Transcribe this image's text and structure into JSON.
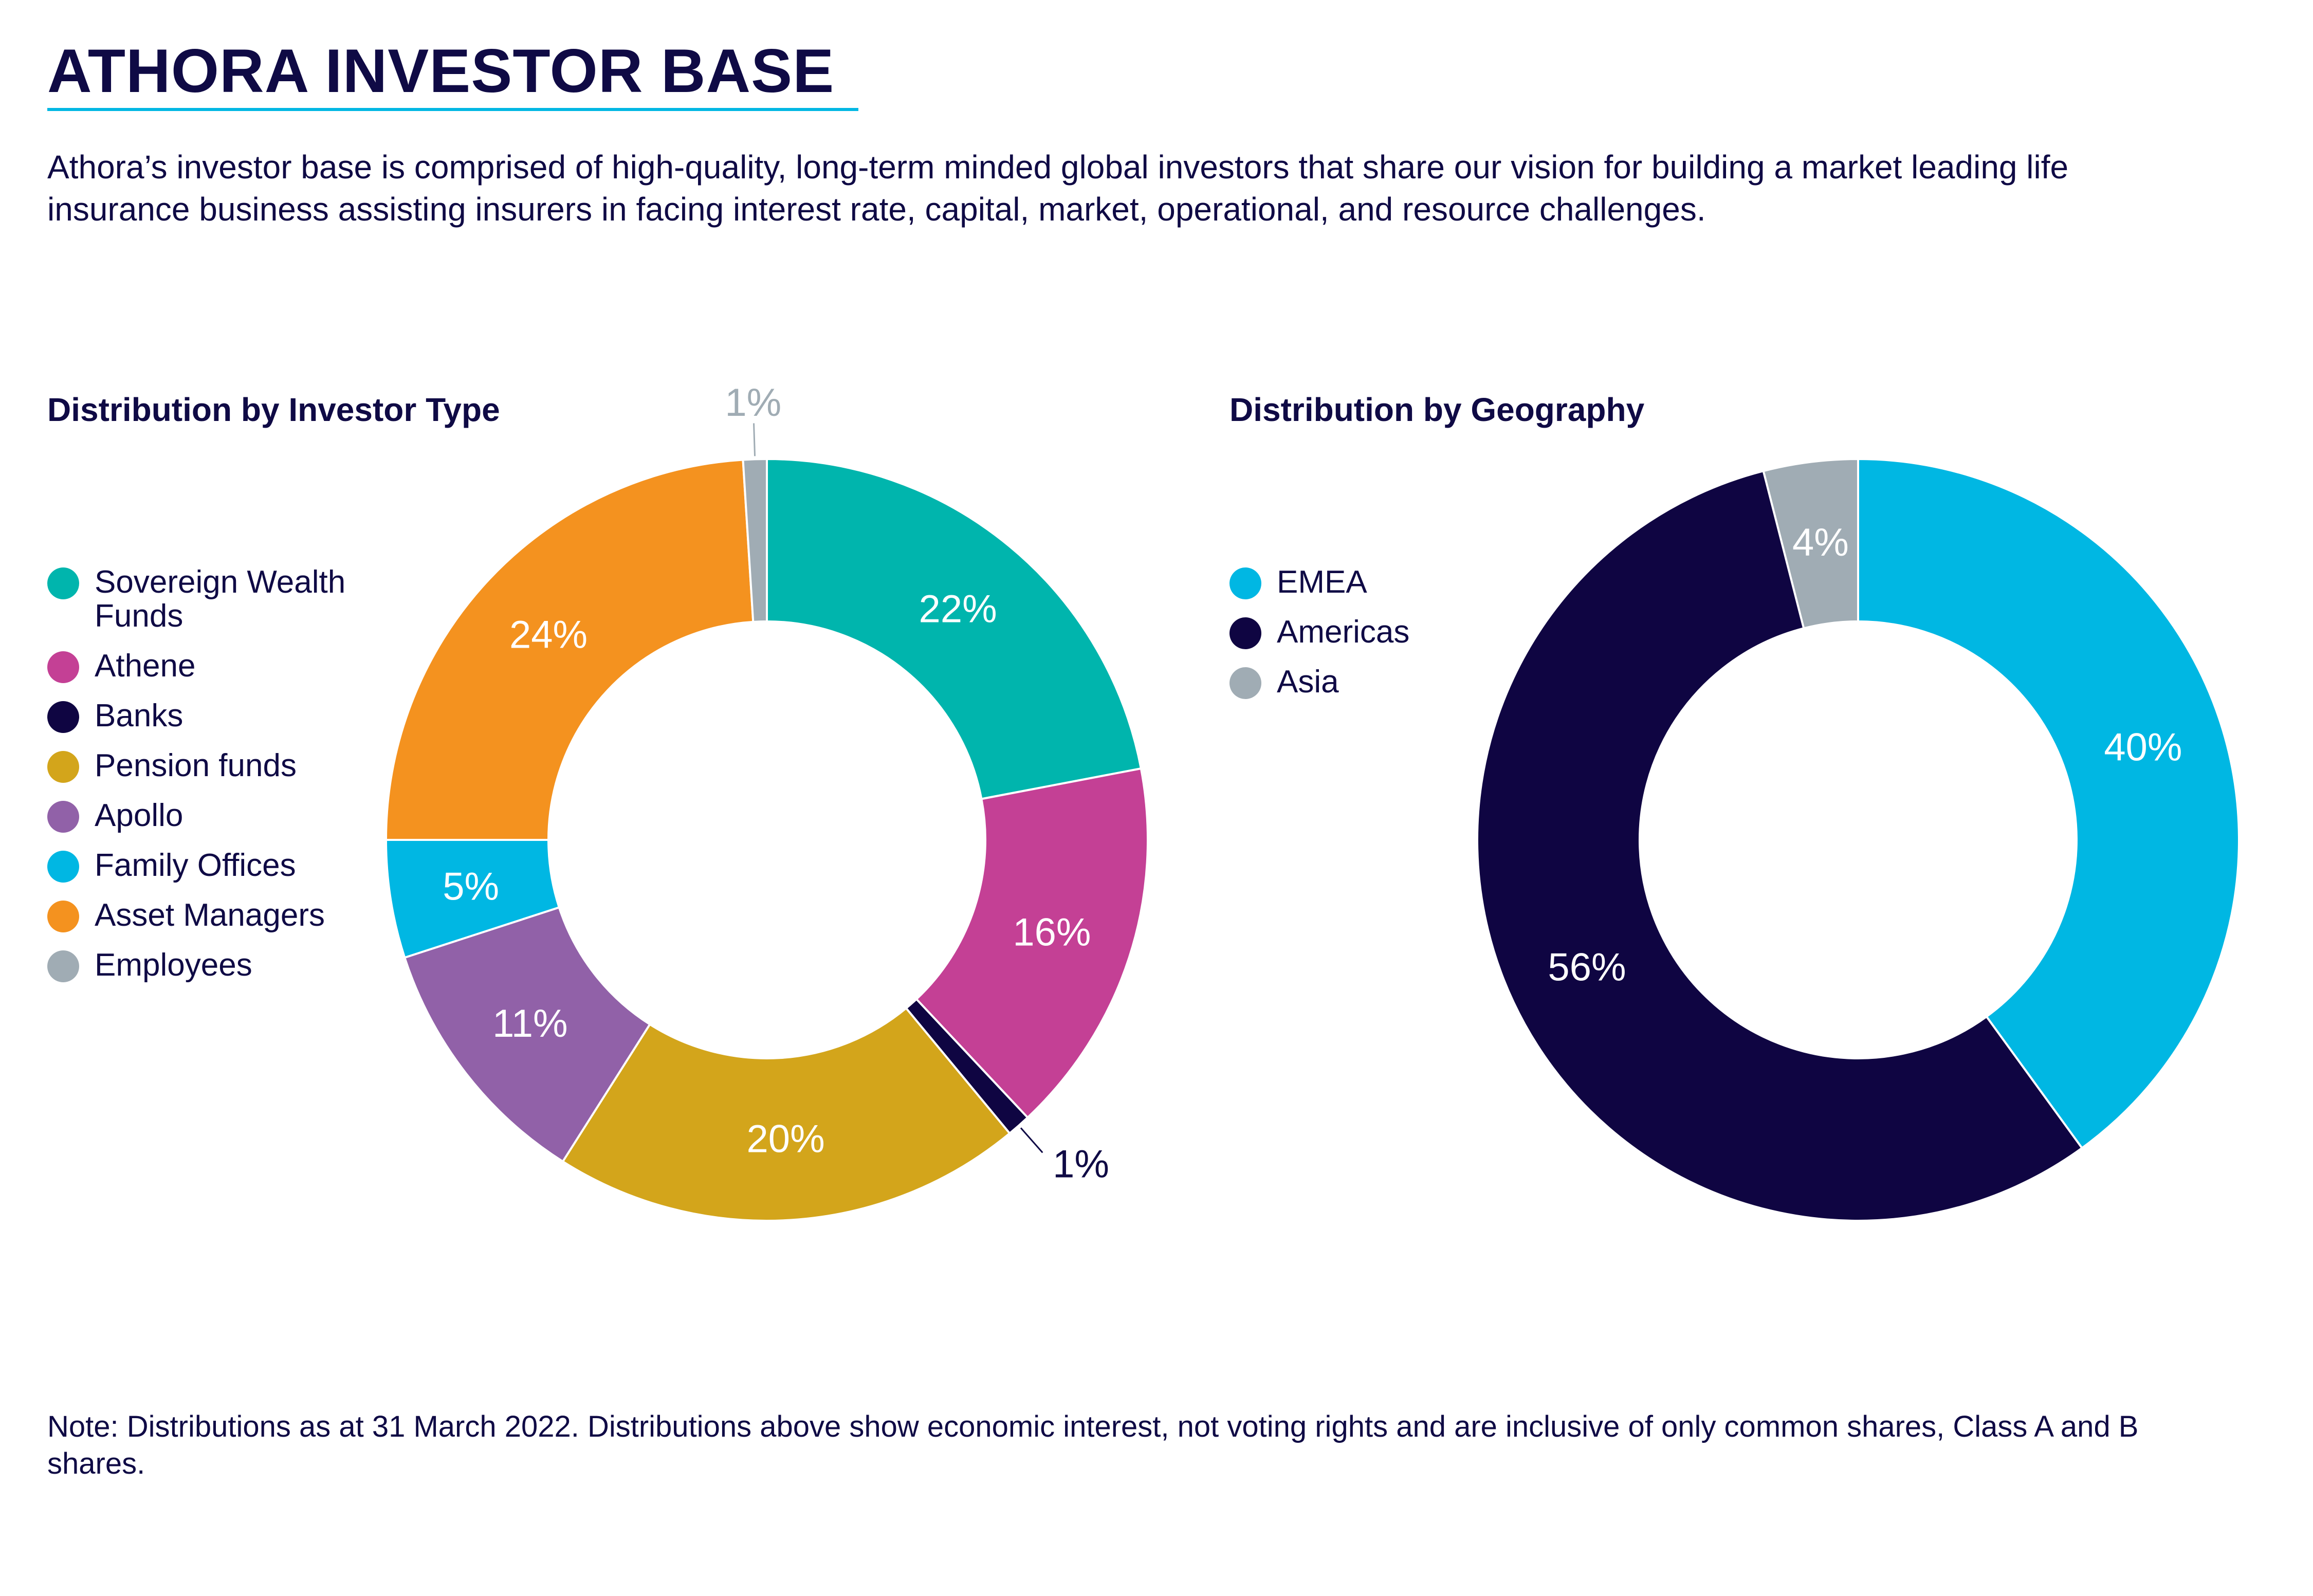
{
  "header": {
    "title": "ATHORA INVESTOR BASE",
    "intro": "Athora’s investor base is comprised of high-quality, long-term minded global investors that share our vision for building a market leading life insurance business assisting insurers in facing interest rate, capital, market, operational, and resource challenges."
  },
  "note": "Note: Distributions as at 31 March 2022. Distributions above show economic interest, not voting rights and are inclusive of only common shares, Class A and B shares.",
  "chart_data": [
    {
      "type": "pie",
      "style": "donut",
      "title": "Distribution by Investor Type",
      "legend_position": "left",
      "categories": [
        "Sovereign Wealth Funds",
        "Athene",
        "Banks",
        "Pension funds",
        "Apollo",
        "Family Offices",
        "Asset Managers",
        "Employees"
      ],
      "values": [
        22,
        16,
        1,
        20,
        11,
        5,
        24,
        1
      ],
      "labels": [
        "22%",
        "16%",
        "1%",
        "20%",
        "11%",
        "5%",
        "24%",
        "1%"
      ],
      "colors": [
        "#00b5ad",
        "#c44095",
        "#0f0542",
        "#d3a51b",
        "#9161a8",
        "#00b7e3",
        "#f4921f",
        "#a0acb4"
      ]
    },
    {
      "type": "pie",
      "style": "donut",
      "title": "Distribution by Geography",
      "legend_position": "left",
      "categories": [
        "EMEA",
        "Americas",
        "Asia"
      ],
      "values": [
        40,
        56,
        4
      ],
      "labels": [
        "40%",
        "56%",
        "4%"
      ],
      "colors": [
        "#00b7e3",
        "#0f0542",
        "#a0acb4"
      ]
    }
  ]
}
